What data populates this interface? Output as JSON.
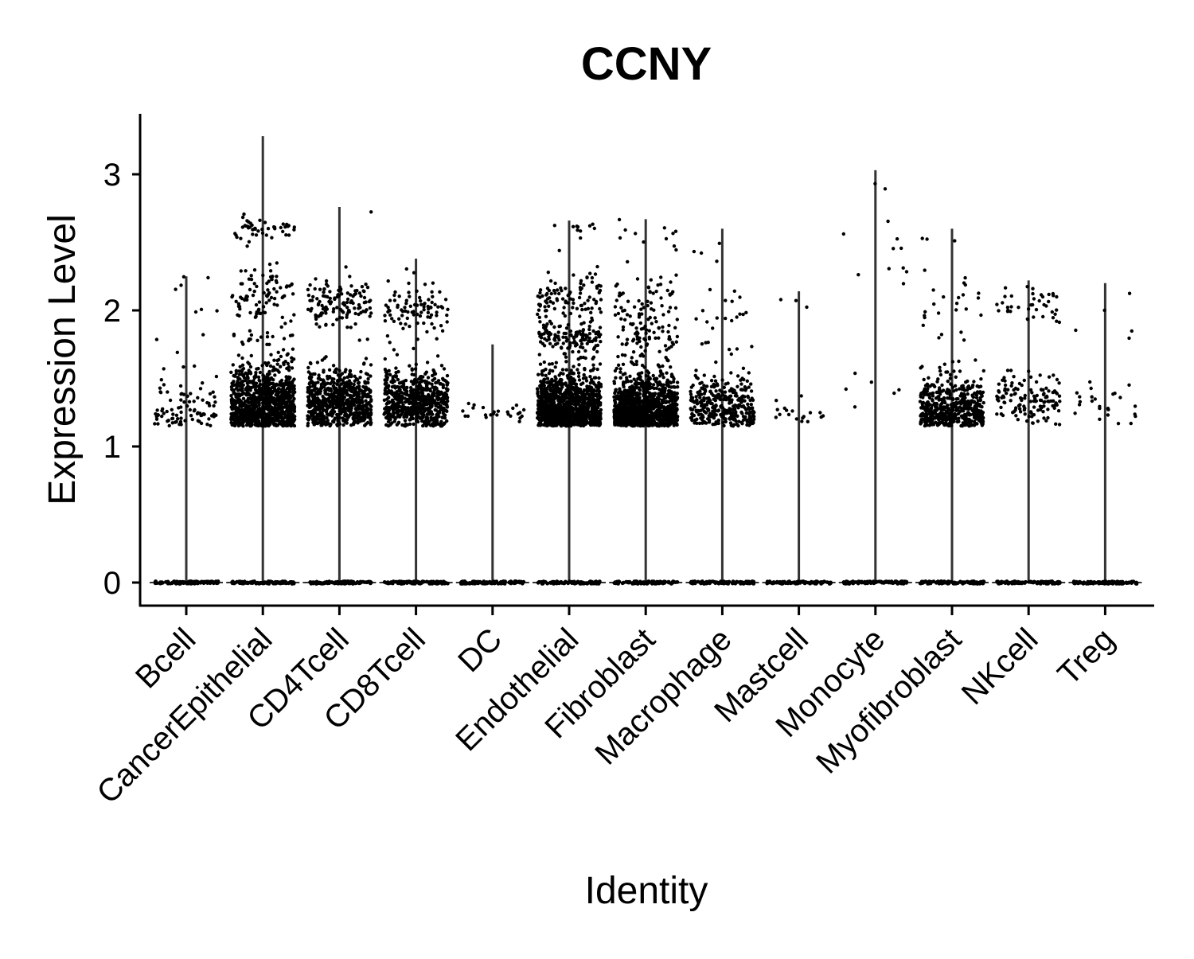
{
  "chart_data": {
    "type": "violin",
    "title": "CCNY",
    "xlabel": "Identity",
    "ylabel": "Expression Level",
    "y_ticks": [
      0,
      1,
      2,
      3
    ],
    "ylim": [
      -0.15,
      3.45
    ],
    "grid": false,
    "legend": "none",
    "colors": {
      "axis": "#000000",
      "violin_stroke": "#333333",
      "points": "#000000"
    },
    "categories": [
      "Bcell",
      "CancerEpithelial",
      "CD4Tcell",
      "CD8Tcell",
      "DC",
      "Endothelial",
      "Fibroblast",
      "Macrophage",
      "Mastcell",
      "Monocyte",
      "Myofibroblast",
      "NKcell",
      "Treg"
    ],
    "max_values": [
      2.25,
      3.28,
      2.76,
      2.38,
      1.75,
      2.66,
      2.67,
      2.6,
      2.14,
      3.03,
      2.6,
      2.22,
      2.2
    ],
    "clusters": [
      {
        "category": "Bcell",
        "groups": [
          {
            "center": 1.28,
            "spread": 0.13,
            "count": 90
          },
          {
            "center": 2.0,
            "spread": 0.2,
            "count": 10
          }
        ]
      },
      {
        "category": "CancerEpithelial",
        "groups": [
          {
            "center": 1.3,
            "spread": 0.15,
            "count": 1100
          },
          {
            "center": 2.1,
            "spread": 0.12,
            "count": 90
          },
          {
            "center": 2.6,
            "spread": 0.05,
            "count": 45
          },
          {
            "center": 1.8,
            "spread": 0.08,
            "count": 15
          }
        ]
      },
      {
        "category": "CD4Tcell",
        "groups": [
          {
            "center": 1.33,
            "spread": 0.12,
            "count": 700
          },
          {
            "center": 2.04,
            "spread": 0.08,
            "count": 120
          },
          {
            "center": 2.4,
            "spread": 0.3,
            "count": 4
          }
        ]
      },
      {
        "category": "CD8Tcell",
        "groups": [
          {
            "center": 1.33,
            "spread": 0.12,
            "count": 650
          },
          {
            "center": 2.0,
            "spread": 0.12,
            "count": 90
          }
        ]
      },
      {
        "category": "DC",
        "groups": [
          {
            "center": 1.24,
            "spread": 0.04,
            "count": 25
          }
        ]
      },
      {
        "category": "Endothelial",
        "groups": [
          {
            "center": 1.28,
            "spread": 0.14,
            "count": 1100
          },
          {
            "center": 1.8,
            "spread": 0.07,
            "count": 140
          },
          {
            "center": 2.1,
            "spread": 0.1,
            "count": 100
          },
          {
            "center": 2.6,
            "spread": 0.05,
            "count": 10
          }
        ]
      },
      {
        "category": "Fibroblast",
        "groups": [
          {
            "center": 1.27,
            "spread": 0.13,
            "count": 1200
          },
          {
            "center": 1.8,
            "spread": 0.08,
            "count": 70
          },
          {
            "center": 2.05,
            "spread": 0.1,
            "count": 60
          },
          {
            "center": 2.55,
            "spread": 0.08,
            "count": 12
          }
        ]
      },
      {
        "category": "Macrophage",
        "groups": [
          {
            "center": 1.28,
            "spread": 0.12,
            "count": 350
          },
          {
            "center": 1.9,
            "spread": 0.2,
            "count": 25
          },
          {
            "center": 2.5,
            "spread": 0.1,
            "count": 4
          }
        ]
      },
      {
        "category": "Mastcell",
        "groups": [
          {
            "center": 1.25,
            "spread": 0.08,
            "count": 18
          },
          {
            "center": 2.0,
            "spread": 0.15,
            "count": 3
          }
        ]
      },
      {
        "category": "Monocyte",
        "groups": [
          {
            "center": 1.4,
            "spread": 0.1,
            "count": 6
          },
          {
            "center": 2.2,
            "spread": 0.2,
            "count": 8
          },
          {
            "center": 2.7,
            "spread": 0.2,
            "count": 4
          }
        ]
      },
      {
        "category": "Myofibroblast",
        "groups": [
          {
            "center": 1.27,
            "spread": 0.12,
            "count": 500
          },
          {
            "center": 2.0,
            "spread": 0.2,
            "count": 25
          },
          {
            "center": 2.55,
            "spread": 0.05,
            "count": 3
          }
        ]
      },
      {
        "category": "NKcell",
        "groups": [
          {
            "center": 1.35,
            "spread": 0.1,
            "count": 130
          },
          {
            "center": 2.04,
            "spread": 0.07,
            "count": 40
          }
        ]
      },
      {
        "category": "Treg",
        "groups": [
          {
            "center": 1.3,
            "spread": 0.1,
            "count": 25
          },
          {
            "center": 2.0,
            "spread": 0.1,
            "count": 5
          }
        ]
      }
    ]
  }
}
